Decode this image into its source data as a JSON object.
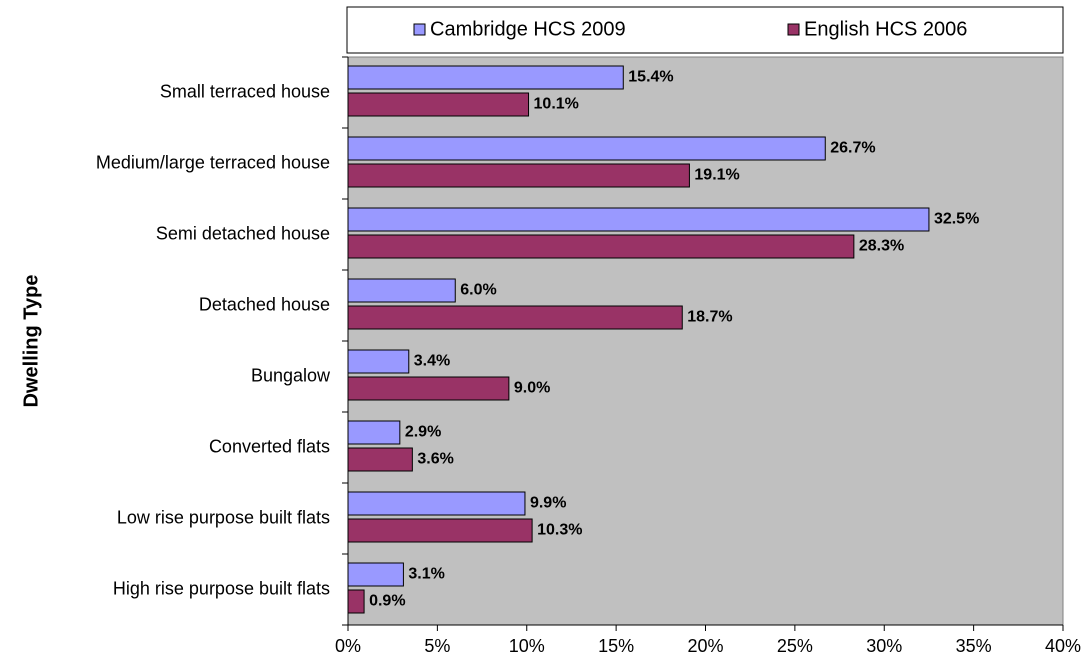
{
  "chart_data": {
    "type": "bar",
    "orientation": "horizontal",
    "ylabel": "Dwelling Type",
    "categories": [
      "Small terraced house",
      "Medium/large terraced house",
      "Semi detached house",
      "Detached house",
      "Bungalow",
      "Converted flats",
      "Low rise purpose built flats",
      "High rise purpose built flats"
    ],
    "series": [
      {
        "name": "Cambridge HCS 2009",
        "color": "#9999ff",
        "values": [
          15.4,
          26.7,
          32.5,
          6.0,
          3.4,
          2.9,
          9.9,
          3.1
        ],
        "value_labels": [
          "15.4%",
          "26.7%",
          "32.5%",
          "6.0%",
          "3.4%",
          "2.9%",
          "9.9%",
          "3.1%"
        ]
      },
      {
        "name": "English HCS 2006",
        "color": "#993366",
        "values": [
          10.1,
          19.1,
          28.3,
          18.7,
          9.0,
          3.6,
          10.3,
          0.9
        ],
        "value_labels": [
          "10.1%",
          "19.1%",
          "28.3%",
          "18.7%",
          "9.0%",
          "3.6%",
          "10.3%",
          "0.9%"
        ]
      }
    ],
    "xlim": [
      0,
      40
    ],
    "xticks": [
      {
        "value": 0,
        "label": "0%"
      },
      {
        "value": 5,
        "label": "5%"
      },
      {
        "value": 10,
        "label": "10%"
      },
      {
        "value": 15,
        "label": "15%"
      },
      {
        "value": 20,
        "label": "20%"
      },
      {
        "value": 25,
        "label": "25%"
      },
      {
        "value": 30,
        "label": "30%"
      },
      {
        "value": 35,
        "label": "35%"
      },
      {
        "value": 40,
        "label": "40%"
      }
    ],
    "legend": "top",
    "plot_background": "#c0c0c0"
  }
}
